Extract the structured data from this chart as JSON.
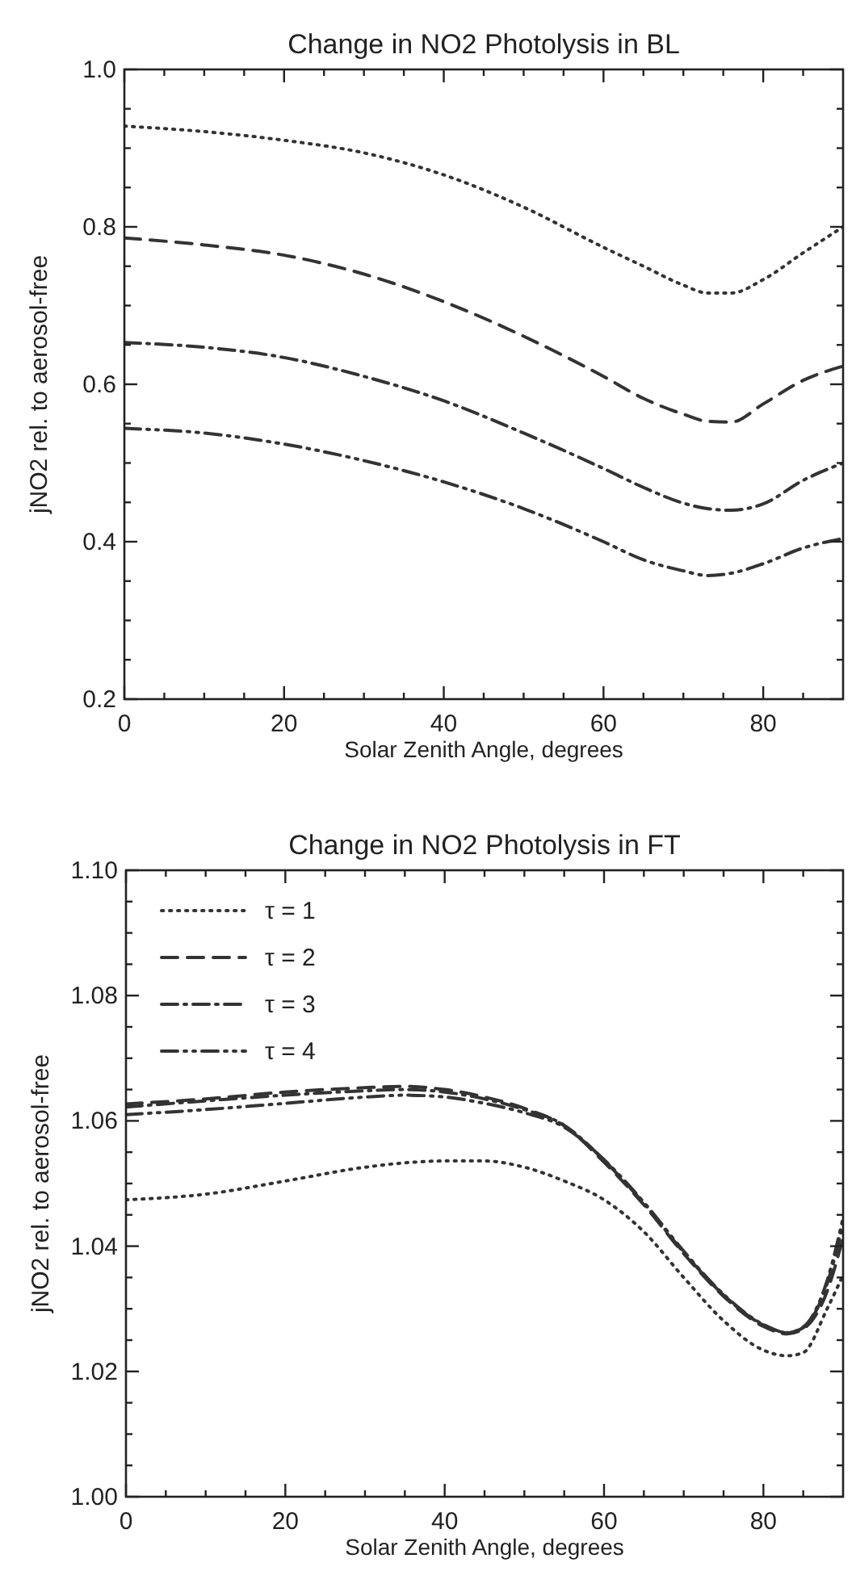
{
  "chart_data": [
    {
      "type": "line",
      "title": "Change in NO2 Photolysis in BL",
      "xlabel": "Solar Zenith Angle, degrees",
      "ylabel": "jNO2 rel. to aerosol-free",
      "xlim": [
        0,
        90
      ],
      "ylim": [
        0.2,
        1.0
      ],
      "xticks": [
        0,
        {
          "value": 5,
          "label": null
        },
        {
          "value": 10,
          "label": null
        },
        {
          "value": 15,
          "label": null
        },
        20,
        {
          "value": 25,
          "label": null
        },
        {
          "value": 30,
          "label": null
        },
        {
          "value": 35,
          "label": null
        },
        40,
        {
          "value": 45,
          "label": null
        },
        {
          "value": 50,
          "label": null
        },
        {
          "value": 55,
          "label": null
        },
        60,
        {
          "value": 65,
          "label": null
        },
        {
          "value": 70,
          "label": null
        },
        {
          "value": 75,
          "label": null
        },
        80,
        {
          "value": 85,
          "label": null
        }
      ],
      "yticks": [
        0.2,
        {
          "value": 0.25,
          "label": null
        },
        {
          "value": 0.3,
          "label": null
        },
        {
          "value": 0.35,
          "label": null
        },
        0.4,
        {
          "value": 0.45,
          "label": null
        },
        {
          "value": 0.5,
          "label": null
        },
        {
          "value": 0.55,
          "label": null
        },
        0.6,
        {
          "value": 0.65,
          "label": null
        },
        {
          "value": 0.7,
          "label": null
        },
        {
          "value": 0.75,
          "label": null
        },
        0.8,
        {
          "value": 0.85,
          "label": null
        },
        {
          "value": 0.9,
          "label": null
        },
        {
          "value": 0.95,
          "label": null
        },
        {
          "value": 1.0,
          "label": "1.0"
        }
      ],
      "grid": false,
      "legend": false,
      "x": [
        0,
        10,
        20,
        30,
        40,
        50,
        60,
        65,
        70,
        73,
        76,
        80,
        85,
        90
      ],
      "series": [
        {
          "color": "#333333",
          "line_style": "dotted",
          "values": [
            0.928,
            0.921,
            0.91,
            0.894,
            0.866,
            0.825,
            0.774,
            0.75,
            0.726,
            0.716,
            0.716,
            0.733,
            0.767,
            0.8
          ]
        },
        {
          "color": "#333333",
          "line_style": "dashed",
          "values": [
            0.786,
            0.777,
            0.764,
            0.74,
            0.705,
            0.661,
            0.61,
            0.582,
            0.562,
            0.553,
            0.552,
            0.575,
            0.605,
            0.623
          ]
        },
        {
          "color": "#333333",
          "line_style": "dashdot",
          "values": [
            0.653,
            0.647,
            0.634,
            0.61,
            0.579,
            0.538,
            0.493,
            0.469,
            0.449,
            0.442,
            0.44,
            0.448,
            0.478,
            0.5
          ]
        },
        {
          "color": "#333333",
          "line_style": "dashdotdot",
          "values": [
            0.544,
            0.538,
            0.524,
            0.503,
            0.476,
            0.442,
            0.4,
            0.377,
            0.363,
            0.357,
            0.36,
            0.372,
            0.392,
            0.404
          ]
        }
      ]
    },
    {
      "type": "line",
      "title": "Change in NO2 Photolysis in FT",
      "xlabel": "Solar Zenith Angle, degrees",
      "ylabel": "jNO2 rel. to aerosol-free",
      "xlim": [
        0,
        90
      ],
      "ylim": [
        1.0,
        1.1
      ],
      "xticks": [
        0,
        {
          "value": 5,
          "label": null
        },
        {
          "value": 10,
          "label": null
        },
        {
          "value": 15,
          "label": null
        },
        20,
        {
          "value": 25,
          "label": null
        },
        {
          "value": 30,
          "label": null
        },
        {
          "value": 35,
          "label": null
        },
        40,
        {
          "value": 45,
          "label": null
        },
        {
          "value": 50,
          "label": null
        },
        {
          "value": 55,
          "label": null
        },
        60,
        {
          "value": 65,
          "label": null
        },
        {
          "value": 70,
          "label": null
        },
        {
          "value": 75,
          "label": null
        },
        80,
        {
          "value": 85,
          "label": null
        }
      ],
      "yticks": [
        {
          "value": 1.0,
          "label": "1.00"
        },
        {
          "value": 1.005,
          "label": null
        },
        {
          "value": 1.01,
          "label": null
        },
        {
          "value": 1.015,
          "label": null
        },
        1.02,
        {
          "value": 1.025,
          "label": null
        },
        {
          "value": 1.03,
          "label": null
        },
        {
          "value": 1.035,
          "label": null
        },
        1.04,
        {
          "value": 1.045,
          "label": null
        },
        {
          "value": 1.05,
          "label": null
        },
        {
          "value": 1.055,
          "label": null
        },
        1.06,
        {
          "value": 1.065,
          "label": null
        },
        {
          "value": 1.07,
          "label": null
        },
        {
          "value": 1.075,
          "label": null
        },
        1.08,
        {
          "value": 1.085,
          "label": null
        },
        {
          "value": 1.09,
          "label": null
        },
        {
          "value": 1.095,
          "label": null
        },
        {
          "value": 1.1,
          "label": "1.10"
        }
      ],
      "grid": false,
      "legend": "top left",
      "x": [
        0,
        10,
        20,
        30,
        35,
        40,
        45,
        50,
        55,
        60,
        65,
        70,
        75,
        80,
        83,
        85,
        88,
        90
      ],
      "series": [
        {
          "name": "τ = 1",
          "color": "#333333",
          "line_style": "dotted",
          "values": [
            1.0474,
            1.0483,
            1.0504,
            1.0526,
            1.0533,
            1.0536,
            1.0536,
            1.0526,
            1.0504,
            1.0474,
            1.0423,
            1.035,
            1.0281,
            1.0234,
            1.0225,
            1.023,
            1.03,
            1.0354
          ]
        },
        {
          "name": "τ = 2",
          "color": "#333333",
          "line_style": "dashed",
          "values": [
            1.0627,
            1.0635,
            1.0646,
            1.0653,
            1.0655,
            1.065,
            1.0638,
            1.062,
            1.0592,
            1.0534,
            1.0466,
            1.0388,
            1.032,
            1.0272,
            1.026,
            1.0268,
            1.0328,
            1.0414
          ]
        },
        {
          "name": "τ = 3",
          "color": "#333333",
          "line_style": "dashdot",
          "values": [
            1.0622,
            1.0632,
            1.0641,
            1.0648,
            1.065,
            1.0646,
            1.0635,
            1.0618,
            1.0593,
            1.0537,
            1.0468,
            1.039,
            1.0322,
            1.0274,
            1.0262,
            1.027,
            1.034,
            1.0435
          ]
        },
        {
          "name": "τ = 4",
          "color": "#333333",
          "line_style": "dashdotdot",
          "values": [
            1.061,
            1.0618,
            1.0628,
            1.0638,
            1.0641,
            1.0638,
            1.0628,
            1.0613,
            1.059,
            1.0538,
            1.047,
            1.0392,
            1.0323,
            1.0275,
            1.0262,
            1.0271,
            1.0345,
            1.0445
          ]
        }
      ]
    }
  ]
}
